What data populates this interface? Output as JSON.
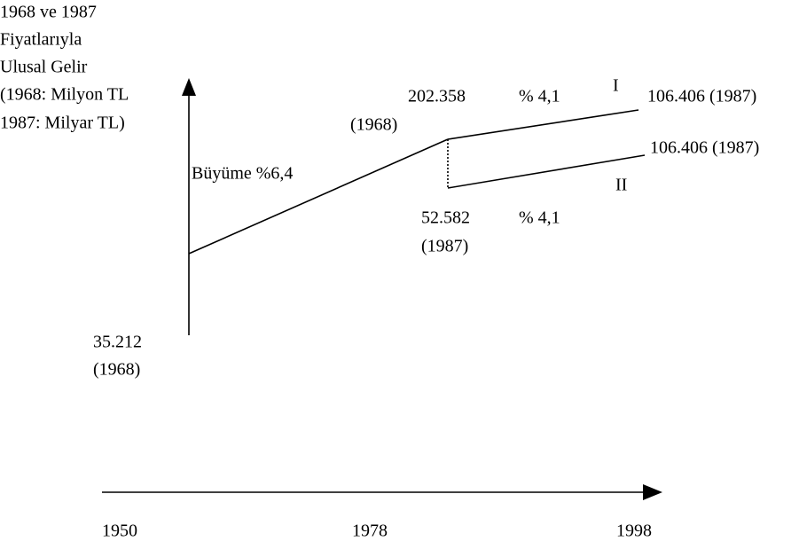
{
  "y_axis_label": [
    "1968 ve 1987",
    "Fiyatlarıyla",
    "Ulusal Gelir",
    "(1968: Milyon TL",
    "1987: Milyar TL)"
  ],
  "start": {
    "value": "35.212",
    "year": "(1968)"
  },
  "growth_label": "Büyüme %6,4",
  "branch_point": {
    "upper_value": "202.358",
    "upper_year": "(1968)",
    "lower_value": "52.582",
    "lower_year": "(1987)"
  },
  "path_I": {
    "label": "I",
    "rate": "% 4,1",
    "end": "106.406 (1987)"
  },
  "path_II": {
    "label": "II",
    "rate": "% 4,1",
    "end": "106.406 (1987)"
  },
  "x_axis": [
    "1950",
    "1978",
    "1998"
  ]
}
